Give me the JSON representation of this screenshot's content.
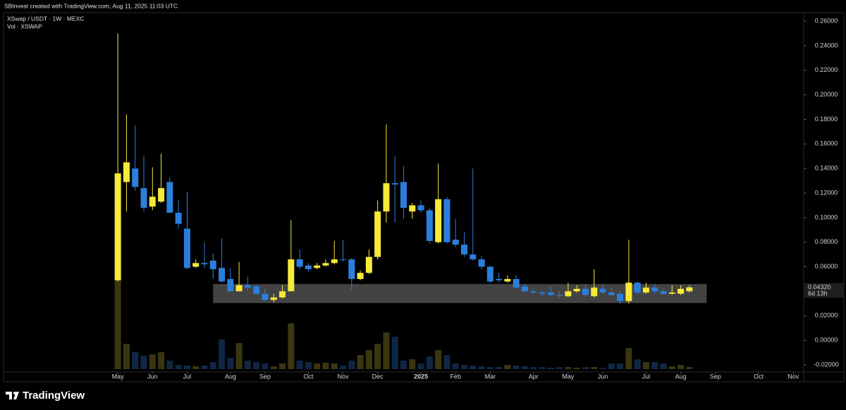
{
  "header": "SBInvest created with TradingView.com, Aug 11, 2025 11:03 UTC",
  "brand": "TradingView",
  "chart_data": {
    "type": "candlestick",
    "title": "XSwap / USDT · 1W · MEXC",
    "volume_label": "Vol · XSWAP",
    "up_color": "#f7e93a",
    "down_color": "#2b7fdc",
    "volume_up_color": "#3a3710",
    "volume_down_color": "#0f2744",
    "grid": false,
    "x": [
      0,
      1,
      2,
      3,
      4,
      5,
      6,
      7,
      8,
      9,
      10,
      11,
      12,
      13,
      14,
      15,
      16,
      17,
      18,
      19,
      20,
      21,
      22,
      23,
      24,
      25,
      26,
      27,
      28,
      29,
      30,
      31,
      32,
      33,
      34,
      35,
      36,
      37,
      38,
      39,
      40,
      41,
      42,
      43,
      44,
      45,
      46,
      47,
      48,
      49,
      50,
      51,
      52,
      53,
      54,
      55,
      56,
      57,
      58,
      59,
      60,
      61,
      62,
      63,
      64,
      65,
      66
    ],
    "open": [
      0.049,
      0.129,
      0.14,
      0.124,
      0.109,
      0.113,
      0.129,
      0.104,
      0.091,
      0.06,
      0.063,
      0.065,
      0.059,
      0.05,
      0.04,
      0.045,
      0.044,
      0.038,
      0.033,
      0.035,
      0.04,
      0.066,
      0.061,
      0.059,
      0.061,
      0.063,
      0.066,
      0.066,
      0.05,
      0.055,
      0.068,
      0.105,
      0.128,
      0.129,
      0.105,
      0.11,
      0.106,
      0.08,
      0.115,
      0.082,
      0.078,
      0.07,
      0.066,
      0.06,
      0.05,
      0.048,
      0.05,
      0.044,
      0.04,
      0.039,
      0.039,
      0.037,
      0.036,
      0.04,
      0.042,
      0.036,
      0.042,
      0.039,
      0.038,
      0.032,
      0.047,
      0.039,
      0.043,
      0.04,
      0.038,
      0.038,
      0.04
    ],
    "high": [
      0.25,
      0.184,
      0.175,
      0.15,
      0.141,
      0.152,
      0.133,
      0.114,
      0.121,
      0.066,
      0.08,
      0.071,
      0.083,
      0.059,
      0.064,
      0.052,
      0.045,
      0.042,
      0.038,
      0.045,
      0.098,
      0.074,
      0.063,
      0.063,
      0.066,
      0.081,
      0.082,
      0.067,
      0.057,
      0.074,
      0.114,
      0.176,
      0.15,
      0.142,
      0.112,
      0.114,
      0.108,
      0.144,
      0.117,
      0.099,
      0.088,
      0.14,
      0.069,
      0.061,
      0.055,
      0.053,
      0.053,
      0.046,
      0.042,
      0.041,
      0.044,
      0.04,
      0.047,
      0.045,
      0.046,
      0.058,
      0.045,
      0.043,
      0.04,
      0.082,
      0.048,
      0.047,
      0.046,
      0.042,
      0.045,
      0.045,
      0.045
    ],
    "low": [
      0.048,
      0.105,
      0.122,
      0.105,
      0.106,
      0.112,
      0.104,
      0.091,
      0.058,
      0.059,
      0.059,
      0.05,
      0.047,
      0.04,
      0.04,
      0.041,
      0.037,
      0.032,
      0.031,
      0.034,
      0.04,
      0.058,
      0.056,
      0.058,
      0.06,
      0.062,
      0.064,
      0.041,
      0.049,
      0.054,
      0.066,
      0.096,
      0.096,
      0.099,
      0.099,
      0.104,
      0.079,
      0.079,
      0.079,
      0.076,
      0.068,
      0.065,
      0.058,
      0.047,
      0.047,
      0.047,
      0.042,
      0.039,
      0.038,
      0.036,
      0.036,
      0.035,
      0.035,
      0.039,
      0.036,
      0.035,
      0.038,
      0.036,
      0.03,
      0.03,
      0.037,
      0.038,
      0.038,
      0.037,
      0.037,
      0.037,
      0.039
    ],
    "close": [
      0.136,
      0.145,
      0.125,
      0.108,
      0.117,
      0.124,
      0.104,
      0.095,
      0.059,
      0.063,
      0.062,
      0.058,
      0.048,
      0.04,
      0.045,
      0.043,
      0.038,
      0.033,
      0.035,
      0.04,
      0.066,
      0.06,
      0.058,
      0.061,
      0.063,
      0.066,
      0.066,
      0.05,
      0.055,
      0.068,
      0.105,
      0.128,
      0.127,
      0.108,
      0.11,
      0.106,
      0.081,
      0.115,
      0.08,
      0.078,
      0.07,
      0.066,
      0.06,
      0.048,
      0.049,
      0.05,
      0.043,
      0.04,
      0.039,
      0.038,
      0.037,
      0.037,
      0.04,
      0.042,
      0.037,
      0.043,
      0.039,
      0.037,
      0.032,
      0.047,
      0.039,
      0.043,
      0.04,
      0.038,
      0.039,
      0.042,
      0.0432
    ],
    "volume": [
      127,
      36,
      24,
      19,
      21,
      24,
      12,
      6,
      5,
      4,
      5,
      10,
      42,
      16,
      37,
      12,
      10,
      8,
      4,
      8,
      65,
      12,
      10,
      8,
      9,
      8,
      5,
      12,
      20,
      27,
      36,
      52,
      46,
      12,
      14,
      8,
      18,
      27,
      20,
      8,
      6,
      5,
      4,
      3,
      3,
      6,
      5,
      4,
      3,
      3,
      2,
      3,
      3,
      2,
      3,
      3,
      2,
      8,
      8,
      30,
      14,
      10,
      10,
      8,
      4,
      6,
      3
    ],
    "zone": {
      "x": [
        11,
        68
      ],
      "y": [
        0.0304,
        0.0459
      ],
      "color": "#5a5a5a"
    },
    "last_price": {
      "value": 0.0432,
      "label": "0.04320"
    },
    "countdown": "6d 13h",
    "xlim": [
      -13.2,
      79.2
    ],
    "xticks": [
      {
        "value": 0,
        "label": "May"
      },
      {
        "value": 4,
        "label": "Jun"
      },
      {
        "value": 8,
        "label": "Jul"
      },
      {
        "value": 13,
        "label": "Aug"
      },
      {
        "value": 17,
        "label": "Sep"
      },
      {
        "value": 22,
        "label": "Oct"
      },
      {
        "value": 26,
        "label": "Nov"
      },
      {
        "value": 30,
        "label": "Dec"
      },
      {
        "value": 35,
        "label": "2025"
      },
      {
        "value": 39,
        "label": "Feb"
      },
      {
        "value": 43,
        "label": "Mar"
      },
      {
        "value": 48,
        "label": "Apr"
      },
      {
        "value": 52,
        "label": "May"
      },
      {
        "value": 56,
        "label": "Jun"
      },
      {
        "value": 61,
        "label": "Jul"
      },
      {
        "value": 65,
        "label": "Aug"
      },
      {
        "value": 69,
        "label": "Sep"
      },
      {
        "value": 74,
        "label": "Oct"
      },
      {
        "value": 78,
        "label": "Nov"
      }
    ],
    "ylim": [
      -0.0257,
      0.2669
    ],
    "yticks": [
      {
        "value": 0.26,
        "label": "0.26000"
      },
      {
        "value": 0.24,
        "label": "0.24000"
      },
      {
        "value": 0.22,
        "label": "0.22000"
      },
      {
        "value": 0.2,
        "label": "0.20000"
      },
      {
        "value": 0.18,
        "label": "0.18000"
      },
      {
        "value": 0.16,
        "label": "0.16000"
      },
      {
        "value": 0.14,
        "label": "0.14000"
      },
      {
        "value": 0.12,
        "label": "0.12000"
      },
      {
        "value": 0.1,
        "label": "0.10000"
      },
      {
        "value": 0.08,
        "label": "0.08000"
      },
      {
        "value": 0.06,
        "label": "0.06000"
      },
      {
        "value": 0.02,
        "label": "0.02000"
      },
      {
        "value": 0,
        "label": "0.00000"
      },
      {
        "value": -0.02,
        "label": "-0.02000"
      }
    ]
  }
}
